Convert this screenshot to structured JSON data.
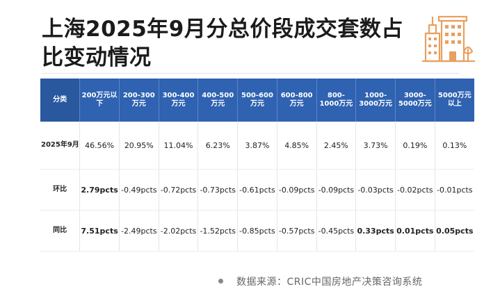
{
  "title": "上海2025年9月分总价段成交套数占比变动情况",
  "colors": {
    "header_bg": "#2f62b1",
    "up": "#d23a2a",
    "down": "#2f9e44",
    "logo": "#e8a060"
  },
  "logo_icon": "buildings-icon",
  "table": {
    "headers": [
      "分类",
      "200万元以下",
      "200-300万元",
      "300-400万元",
      "400-500万元",
      "500-600万元",
      "600-800万元",
      "800-1000万元",
      "1000-3000万元",
      "3000-5000万元",
      "5000万元以上"
    ],
    "rows": [
      {
        "label": "2025年9月",
        "cells": [
          {
            "v": "46.56%",
            "dir": ""
          },
          {
            "v": "20.95%",
            "dir": ""
          },
          {
            "v": "11.04%",
            "dir": ""
          },
          {
            "v": "6.23%",
            "dir": ""
          },
          {
            "v": "3.87%",
            "dir": ""
          },
          {
            "v": "4.85%",
            "dir": ""
          },
          {
            "v": "2.45%",
            "dir": ""
          },
          {
            "v": "3.73%",
            "dir": ""
          },
          {
            "v": "0.19%",
            "dir": ""
          },
          {
            "v": "0.13%",
            "dir": ""
          }
        ]
      },
      {
        "label": "环比",
        "cells": [
          {
            "v": "2.79pcts",
            "dir": "up"
          },
          {
            "v": "-0.49pcts",
            "dir": "down"
          },
          {
            "v": "-0.72pcts",
            "dir": "down"
          },
          {
            "v": "-0.73pcts",
            "dir": "down"
          },
          {
            "v": "-0.61pcts",
            "dir": "down"
          },
          {
            "v": "-0.09pcts",
            "dir": "down"
          },
          {
            "v": "-0.09pcts",
            "dir": "down"
          },
          {
            "v": "-0.03pcts",
            "dir": "down"
          },
          {
            "v": "-0.02pcts",
            "dir": "down"
          },
          {
            "v": "-0.01pcts",
            "dir": "down"
          }
        ]
      },
      {
        "label": "同比",
        "cells": [
          {
            "v": "7.51pcts",
            "dir": "up"
          },
          {
            "v": "-2.49pcts",
            "dir": "down"
          },
          {
            "v": "-2.02pcts",
            "dir": "down"
          },
          {
            "v": "-1.52pcts",
            "dir": "down"
          },
          {
            "v": "-0.85pcts",
            "dir": "down"
          },
          {
            "v": "-0.57pcts",
            "dir": "down"
          },
          {
            "v": "-0.45pcts",
            "dir": "down"
          },
          {
            "v": "0.33pcts",
            "dir": "up"
          },
          {
            "v": "0.01pcts",
            "dir": "up"
          },
          {
            "v": "0.05pcts",
            "dir": "up"
          }
        ]
      }
    ]
  },
  "footnote": "数据来源：CRIC中国房地产决策咨询系统"
}
